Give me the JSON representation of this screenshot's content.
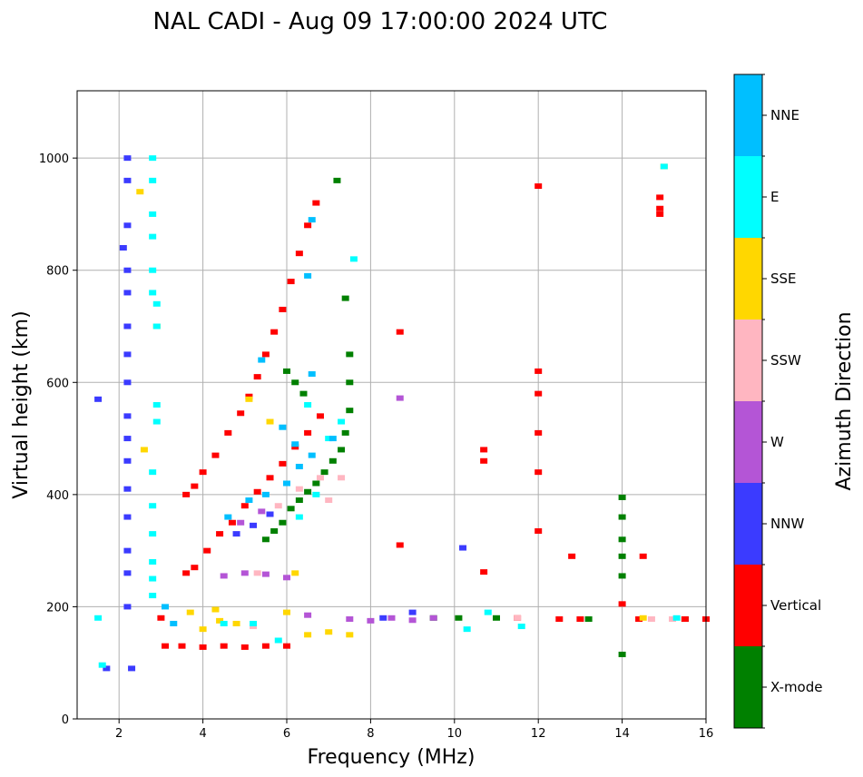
{
  "chart_data": {
    "type": "scatter",
    "title": "NAL CADI - Aug 09 17:00:00 2024 UTC",
    "xlabel": "Frequency (MHz)",
    "ylabel": "Virtual height (km)",
    "xlim": [
      1,
      16
    ],
    "ylim": [
      0,
      1120
    ],
    "xticks": [
      2,
      4,
      6,
      8,
      10,
      12,
      14,
      16
    ],
    "xtick_labels": [
      "2",
      "4",
      "6",
      "8",
      "10",
      "12",
      "14",
      "16"
    ],
    "yticks": [
      0,
      200,
      400,
      600,
      800,
      1000
    ],
    "ytick_labels": [
      "0",
      "200",
      "400",
      "600",
      "800",
      "1000"
    ],
    "grid": true,
    "colorbar": {
      "title": "Azimuth Direction",
      "categories": [
        "X-mode",
        "Vertical",
        "NNW",
        "W",
        "SSW",
        "SSE",
        "E",
        "NNE"
      ],
      "colors": [
        "#008000",
        "#ff0000",
        "#3b3bff",
        "#b455d6",
        "#ffb6c1",
        "#ffd700",
        "#00ffff",
        "#00bfff"
      ]
    },
    "series": [
      {
        "name": "X-mode",
        "points": [
          [
            5.5,
            320
          ],
          [
            5.7,
            335
          ],
          [
            5.9,
            350
          ],
          [
            6.1,
            375
          ],
          [
            6.3,
            390
          ],
          [
            6.5,
            405
          ],
          [
            6.7,
            420
          ],
          [
            6.9,
            440
          ],
          [
            7.1,
            460
          ],
          [
            7.3,
            480
          ],
          [
            7.4,
            510
          ],
          [
            7.5,
            550
          ],
          [
            7.5,
            600
          ],
          [
            7.5,
            650
          ],
          [
            7.4,
            750
          ],
          [
            7.2,
            960
          ],
          [
            6.0,
            620
          ],
          [
            6.2,
            600
          ],
          [
            6.4,
            580
          ],
          [
            14,
            395
          ],
          [
            14,
            360
          ],
          [
            14,
            320
          ],
          [
            14,
            290
          ],
          [
            14,
            255
          ],
          [
            14,
            115
          ],
          [
            10.1,
            180
          ],
          [
            11,
            180
          ],
          [
            13.2,
            178
          ],
          [
            15.5,
            178
          ],
          [
            9.5,
            180
          ]
        ]
      },
      {
        "name": "Vertical",
        "points": [
          [
            3.6,
            400
          ],
          [
            3.8,
            415
          ],
          [
            4.0,
            440
          ],
          [
            4.3,
            470
          ],
          [
            4.6,
            510
          ],
          [
            4.9,
            545
          ],
          [
            5.1,
            575
          ],
          [
            5.3,
            610
          ],
          [
            5.5,
            650
          ],
          [
            5.7,
            690
          ],
          [
            5.9,
            730
          ],
          [
            6.1,
            780
          ],
          [
            6.3,
            830
          ],
          [
            6.5,
            880
          ],
          [
            6.7,
            920
          ],
          [
            3.6,
            260
          ],
          [
            3.8,
            270
          ],
          [
            4.1,
            300
          ],
          [
            4.4,
            330
          ],
          [
            4.7,
            350
          ],
          [
            5.0,
            380
          ],
          [
            5.3,
            405
          ],
          [
            5.6,
            430
          ],
          [
            5.9,
            455
          ],
          [
            6.2,
            485
          ],
          [
            6.5,
            510
          ],
          [
            6.8,
            540
          ],
          [
            3.0,
            180
          ],
          [
            3.1,
            130
          ],
          [
            3.5,
            130
          ],
          [
            4.0,
            128
          ],
          [
            4.5,
            130
          ],
          [
            5.0,
            128
          ],
          [
            5.5,
            130
          ],
          [
            6.0,
            130
          ],
          [
            8.7,
            690
          ],
          [
            10.7,
            480
          ],
          [
            10.7,
            460
          ],
          [
            12,
            950
          ],
          [
            12,
            620
          ],
          [
            12,
            580
          ],
          [
            12,
            510
          ],
          [
            12,
            440
          ],
          [
            12,
            335
          ],
          [
            14.9,
            930
          ],
          [
            14.9,
            910
          ],
          [
            14.9,
            900
          ],
          [
            14,
            205
          ],
          [
            14.5,
            290
          ],
          [
            11.5,
            180
          ],
          [
            12.5,
            178
          ],
          [
            13,
            178
          ],
          [
            14.4,
            178
          ],
          [
            15.5,
            178
          ],
          [
            16,
            178
          ],
          [
            8.7,
            310
          ],
          [
            10.7,
            262
          ],
          [
            12.8,
            290
          ]
        ]
      },
      {
        "name": "NNW",
        "points": [
          [
            1.5,
            570
          ],
          [
            2.2,
            1000
          ],
          [
            2.2,
            960
          ],
          [
            2.2,
            880
          ],
          [
            2.2,
            800
          ],
          [
            2.2,
            760
          ],
          [
            2.2,
            700
          ],
          [
            2.2,
            650
          ],
          [
            2.2,
            600
          ],
          [
            2.2,
            540
          ],
          [
            2.2,
            500
          ],
          [
            2.2,
            460
          ],
          [
            2.2,
            410
          ],
          [
            2.2,
            360
          ],
          [
            2.2,
            300
          ],
          [
            2.2,
            260
          ],
          [
            2.2,
            200
          ],
          [
            1.7,
            90
          ],
          [
            2.3,
            90
          ],
          [
            4.8,
            330
          ],
          [
            5.2,
            345
          ],
          [
            5.6,
            365
          ],
          [
            8.3,
            180
          ],
          [
            9.0,
            190
          ],
          [
            10.2,
            305
          ],
          [
            2.1,
            840
          ]
        ]
      },
      {
        "name": "W",
        "points": [
          [
            4.5,
            255
          ],
          [
            5.0,
            260
          ],
          [
            5.5,
            258
          ],
          [
            6.0,
            252
          ],
          [
            7.5,
            178
          ],
          [
            8.0,
            175
          ],
          [
            8.5,
            180
          ],
          [
            9.0,
            176
          ],
          [
            9.5,
            180
          ],
          [
            8.7,
            572
          ],
          [
            4.9,
            350
          ],
          [
            5.4,
            370
          ],
          [
            6.5,
            185
          ]
        ]
      },
      {
        "name": "SSW",
        "points": [
          [
            5.3,
            260
          ],
          [
            5.8,
            380
          ],
          [
            6.3,
            410
          ],
          [
            6.8,
            430
          ],
          [
            7.3,
            430
          ],
          [
            7.0,
            390
          ],
          [
            11.5,
            180
          ],
          [
            15.2,
            178
          ],
          [
            14.7,
            178
          ],
          [
            5.2,
            165
          ]
        ]
      },
      {
        "name": "SSE",
        "points": [
          [
            2.5,
            940
          ],
          [
            2.9,
            700
          ],
          [
            2.6,
            480
          ],
          [
            3.7,
            190
          ],
          [
            4.0,
            160
          ],
          [
            4.4,
            175
          ],
          [
            6.0,
            190
          ],
          [
            6.5,
            150
          ],
          [
            7.0,
            155
          ],
          [
            7.5,
            150
          ],
          [
            5.1,
            570
          ],
          [
            5.6,
            530
          ],
          [
            6.2,
            260
          ],
          [
            14.5,
            180
          ],
          [
            15.0,
            985
          ],
          [
            4.3,
            195
          ],
          [
            4.8,
            170
          ]
        ]
      },
      {
        "name": "E",
        "points": [
          [
            2.8,
            1000
          ],
          [
            2.8,
            960
          ],
          [
            2.8,
            900
          ],
          [
            2.8,
            860
          ],
          [
            2.8,
            800
          ],
          [
            2.8,
            760
          ],
          [
            2.9,
            740
          ],
          [
            2.9,
            700
          ],
          [
            2.9,
            560
          ],
          [
            2.9,
            530
          ],
          [
            2.8,
            440
          ],
          [
            2.8,
            380
          ],
          [
            2.8,
            330
          ],
          [
            2.8,
            280
          ],
          [
            2.8,
            250
          ],
          [
            2.8,
            220
          ],
          [
            1.5,
            180
          ],
          [
            1.6,
            96
          ],
          [
            4.5,
            170
          ],
          [
            5.2,
            170
          ],
          [
            6.3,
            360
          ],
          [
            6.7,
            400
          ],
          [
            7.0,
            500
          ],
          [
            7.3,
            530
          ],
          [
            10.3,
            160
          ],
          [
            10.8,
            190
          ],
          [
            11.6,
            165
          ],
          [
            15.0,
            985
          ],
          [
            15.3,
            180
          ],
          [
            5.8,
            140
          ],
          [
            6.5,
            560
          ],
          [
            7.6,
            820
          ]
        ]
      },
      {
        "name": "NNE",
        "points": [
          [
            4.6,
            360
          ],
          [
            5.1,
            390
          ],
          [
            5.5,
            400
          ],
          [
            6.0,
            420
          ],
          [
            6.3,
            450
          ],
          [
            6.6,
            470
          ],
          [
            6.6,
            890
          ],
          [
            6.5,
            790
          ],
          [
            6.6,
            615
          ],
          [
            6.2,
            490
          ],
          [
            3.1,
            200
          ],
          [
            3.3,
            170
          ],
          [
            7.1,
            500
          ],
          [
            5.4,
            640
          ],
          [
            5.9,
            520
          ]
        ]
      }
    ]
  }
}
